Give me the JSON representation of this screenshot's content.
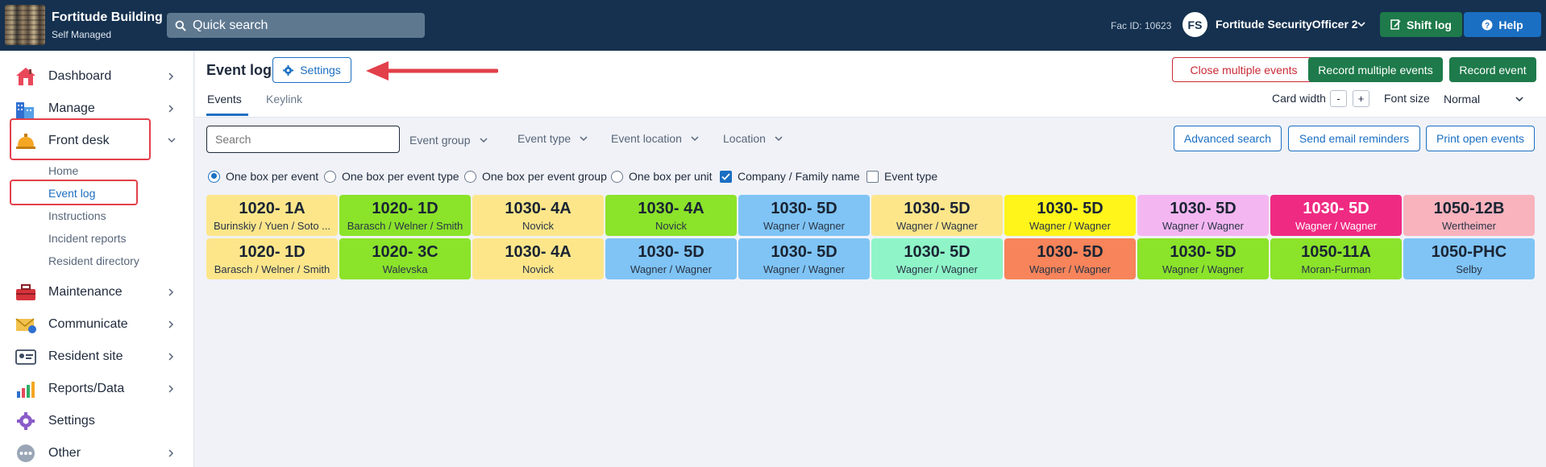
{
  "header": {
    "building_name": "Fortitude Building",
    "building_sub": "Self Managed",
    "quick_search": "Quick search",
    "fac_id": "Fac ID: 10623",
    "avatar_initials": "FS",
    "user_name": "Fortitude SecurityOfficer 2",
    "shift_log_label": "Shift log",
    "help_label": "Help"
  },
  "sidebar": {
    "items": [
      {
        "label": "Dashboard",
        "icon": "house-icon"
      },
      {
        "label": "Manage",
        "icon": "building-icon"
      },
      {
        "label": "Front desk",
        "icon": "service-bell-icon"
      },
      {
        "label": "Maintenance",
        "icon": "toolbox-icon"
      },
      {
        "label": "Communicate",
        "icon": "envelope-icon"
      },
      {
        "label": "Resident site",
        "icon": "id-card-icon"
      },
      {
        "label": "Reports/Data",
        "icon": "chart-icon"
      },
      {
        "label": "Settings",
        "icon": "gear-icon"
      },
      {
        "label": "Other",
        "icon": "dots-icon"
      }
    ],
    "front_desk_sub": [
      "Home",
      "Event log",
      "Instructions",
      "Incident reports",
      "Resident directory"
    ]
  },
  "page": {
    "title": "Event log",
    "settings_label": "Settings",
    "tabs": [
      "Events",
      "Keylink"
    ],
    "close_multiple_label": "Close multiple events",
    "record_multiple_label": "Record multiple events",
    "record_event_label": "Record event",
    "card_width_label": "Card width",
    "minus": "-",
    "plus": "+",
    "font_size_label": "Font size",
    "font_size_value": "Normal"
  },
  "filters": {
    "search_placeholder": "Search",
    "event_group": "Event group",
    "event_type": "Event type",
    "event_location": "Event location",
    "location": "Location",
    "advanced_search": "Advanced search",
    "send_reminders": "Send email reminders",
    "print_open": "Print open events"
  },
  "options": {
    "radios": [
      "One box per event",
      "One box per event type",
      "One box per event group",
      "One box per unit"
    ],
    "selected_radio": "One box per event",
    "checkboxes": [
      {
        "label": "Company / Family name",
        "checked": true
      },
      {
        "label": "Event type",
        "checked": false
      }
    ]
  },
  "cards": [
    {
      "unit": "1020- 1A",
      "names": "Burinskiy / Yuen / Soto ...",
      "color": "#fde68a"
    },
    {
      "unit": "1020- 1D",
      "names": "Barasch / Welner / Smith",
      "color": "#8be32a"
    },
    {
      "unit": "1030- 4A",
      "names": "Novick",
      "color": "#fde68a"
    },
    {
      "unit": "1030- 4A",
      "names": "Novick",
      "color": "#8be32a"
    },
    {
      "unit": "1030- 5D",
      "names": "Wagner / Wagner",
      "color": "#7fc4f5"
    },
    {
      "unit": "1030- 5D",
      "names": "Wagner / Wagner",
      "color": "#fde68a"
    },
    {
      "unit": "1030- 5D",
      "names": "Wagner / Wagner",
      "color": "#fff51a"
    },
    {
      "unit": "1030- 5D",
      "names": "Wagner / Wagner",
      "color": "#f4b6f1"
    },
    {
      "unit": "1030- 5D",
      "names": "Wagner / Wagner",
      "color": "#ef2a82",
      "dark": true
    },
    {
      "unit": "1050-12B",
      "names": "Wertheimer",
      "color": "#f8b3bd"
    },
    {
      "unit": "1020- 1D",
      "names": "Barasch / Welner / Smith",
      "color": "#fde68a"
    },
    {
      "unit": "1020- 3C",
      "names": "Walevska",
      "color": "#8be32a"
    },
    {
      "unit": "1030- 4A",
      "names": "Novick",
      "color": "#fde68a"
    },
    {
      "unit": "1030- 5D",
      "names": "Wagner / Wagner",
      "color": "#7fc4f5"
    },
    {
      "unit": "1030- 5D",
      "names": "Wagner / Wagner",
      "color": "#7fc4f5"
    },
    {
      "unit": "1030- 5D",
      "names": "Wagner / Wagner",
      "color": "#8ff5c8"
    },
    {
      "unit": "1030- 5D",
      "names": "Wagner / Wagner",
      "color": "#f7845a"
    },
    {
      "unit": "1030- 5D",
      "names": "Wagner / Wagner",
      "color": "#8be32a"
    },
    {
      "unit": "1050-11A",
      "names": "Moran-Furman",
      "color": "#8be32a"
    },
    {
      "unit": "1050-PHC",
      "names": "Selby",
      "color": "#7fc4f5"
    }
  ]
}
